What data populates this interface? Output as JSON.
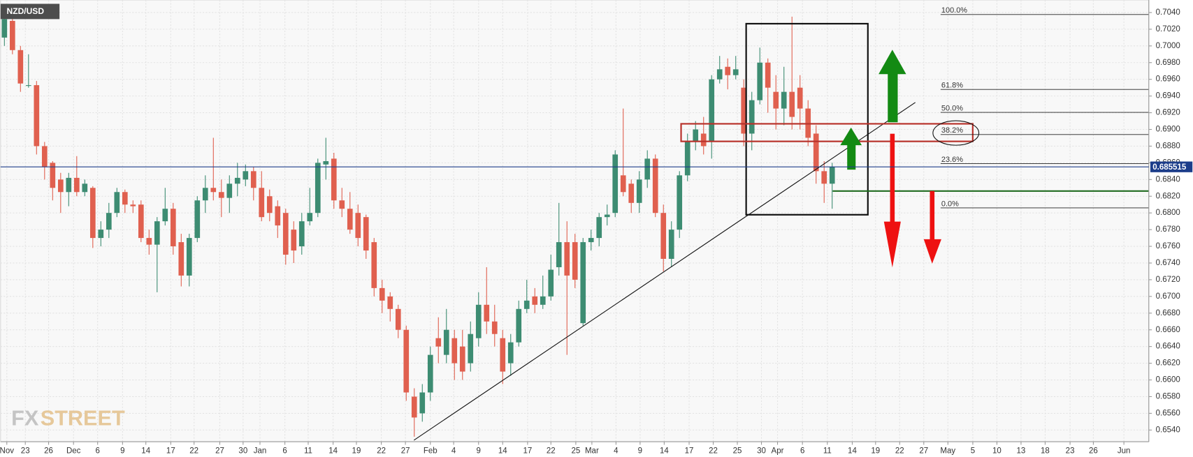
{
  "chart_data": {
    "type": "candlestick",
    "title": "NZD/USD",
    "watermark": [
      "FX",
      "STREET"
    ],
    "up_color": "#3d8c72",
    "down_color": "#e0604f",
    "current_price": 0.685515,
    "current_price_color": "#1c3d8a",
    "fibonacci": [
      "100.0%",
      "61.8%",
      "50.0%",
      "38.2%",
      "23.6%",
      "0.0%"
    ],
    "grid": true,
    "xlim": [
      -0.48,
      142.4
    ],
    "ylim": [
      0.6526,
      0.7055
    ],
    "yticks": [
      {
        "value": 0.654,
        "label": "0.6540"
      },
      {
        "value": 0.656,
        "label": "0.6560"
      },
      {
        "value": 0.658,
        "label": "0.6580"
      },
      {
        "value": 0.66,
        "label": "0.6600"
      },
      {
        "value": 0.662,
        "label": "0.6620"
      },
      {
        "value": 0.664,
        "label": "0.6640"
      },
      {
        "value": 0.666,
        "label": "0.6660"
      },
      {
        "value": 0.668,
        "label": "0.6680"
      },
      {
        "value": 0.67,
        "label": "0.6700"
      },
      {
        "value": 0.672,
        "label": "0.6720"
      },
      {
        "value": 0.674,
        "label": "0.6740"
      },
      {
        "value": 0.676,
        "label": "0.6760"
      },
      {
        "value": 0.678,
        "label": "0.6780"
      },
      {
        "value": 0.68,
        "label": "0.6800"
      },
      {
        "value": 0.682,
        "label": "0.6820"
      },
      {
        "value": 0.684,
        "label": "0.6840"
      },
      {
        "value": 0.686,
        "label": "0.6860"
      },
      {
        "value": 0.688,
        "label": "0.6880"
      },
      {
        "value": 0.69,
        "label": "0.6900"
      },
      {
        "value": 0.692,
        "label": "0.6920"
      },
      {
        "value": 0.694,
        "label": "0.6940"
      },
      {
        "value": 0.696,
        "label": "0.6960"
      },
      {
        "value": 0.698,
        "label": "0.6980"
      },
      {
        "value": 0.7,
        "label": "0.7000"
      },
      {
        "value": 0.702,
        "label": "0.7020"
      },
      {
        "value": 0.704,
        "label": "0.7040"
      }
    ],
    "xticks": [
      {
        "value": 0.3,
        "label": "Nov"
      },
      {
        "value": 2.6,
        "label": "23"
      },
      {
        "value": 5.5,
        "label": "26"
      },
      {
        "value": 8.6,
        "label": "Dec"
      },
      {
        "value": 11.6,
        "label": "6"
      },
      {
        "value": 14.7,
        "label": "9"
      },
      {
        "value": 17.6,
        "label": "14"
      },
      {
        "value": 20.7,
        "label": "17"
      },
      {
        "value": 23.6,
        "label": "22"
      },
      {
        "value": 26.8,
        "label": "27"
      },
      {
        "value": 29.7,
        "label": "30"
      },
      {
        "value": 31.8,
        "label": "Jan"
      },
      {
        "value": 34.9,
        "label": "6"
      },
      {
        "value": 37.8,
        "label": "11"
      },
      {
        "value": 40.9,
        "label": "14"
      },
      {
        "value": 43.8,
        "label": "19"
      },
      {
        "value": 46.9,
        "label": "22"
      },
      {
        "value": 49.9,
        "label": "27"
      },
      {
        "value": 53,
        "label": "Feb"
      },
      {
        "value": 55.9,
        "label": "4"
      },
      {
        "value": 59,
        "label": "9"
      },
      {
        "value": 62,
        "label": "14"
      },
      {
        "value": 65.1,
        "label": "17"
      },
      {
        "value": 68,
        "label": "22"
      },
      {
        "value": 71.1,
        "label": "25"
      },
      {
        "value": 73.1,
        "label": "Mar"
      },
      {
        "value": 76.1,
        "label": "4"
      },
      {
        "value": 79.1,
        "label": "9"
      },
      {
        "value": 82.1,
        "label": "14"
      },
      {
        "value": 85.2,
        "label": "17"
      },
      {
        "value": 88.2,
        "label": "22"
      },
      {
        "value": 91.2,
        "label": "25"
      },
      {
        "value": 94.2,
        "label": "30"
      },
      {
        "value": 96.2,
        "label": "Apr"
      },
      {
        "value": 99.3,
        "label": "6"
      },
      {
        "value": 102.4,
        "label": "11"
      },
      {
        "value": 105.5,
        "label": "14"
      },
      {
        "value": 108.4,
        "label": "19"
      },
      {
        "value": 111.4,
        "label": "22"
      },
      {
        "value": 114.4,
        "label": "27"
      },
      {
        "value": 117.4,
        "label": "May"
      },
      {
        "value": 120.5,
        "label": "5"
      },
      {
        "value": 123.5,
        "label": "10"
      },
      {
        "value": 126.5,
        "label": "13"
      },
      {
        "value": 129.5,
        "label": "18"
      },
      {
        "value": 132.6,
        "label": "23"
      },
      {
        "value": 135.5,
        "label": "26"
      },
      {
        "value": 139.3,
        "label": "Jun"
      }
    ],
    "open": [
      0.701,
      0.703,
      0.6995,
      0.6953,
      0.6953,
      0.688,
      0.686,
      0.684,
      0.6825,
      0.6842,
      0.6825,
      0.683,
      0.677,
      0.678,
      0.68,
      0.6825,
      0.681,
      0.681,
      0.677,
      0.6762,
      0.679,
      0.6805,
      0.6765,
      0.6725,
      0.677,
      0.6815,
      0.683,
      0.6825,
      0.6818,
      0.6835,
      0.684,
      0.685,
      0.683,
      0.682,
      0.6808,
      0.68,
      0.678,
      0.676,
      0.679,
      0.68,
      0.6858,
      0.6865,
      0.6815,
      0.6805,
      0.68,
      0.6795,
      0.6765,
      0.671,
      0.67,
      0.6685,
      0.666,
      0.658,
      0.656,
      0.6585,
      0.665,
      0.663,
      0.665,
      0.664,
      0.662,
      0.665,
      0.669,
      0.667,
      0.665,
      0.662,
      0.6645,
      0.6685,
      0.67,
      0.669,
      0.67,
      0.6735,
      0.6765,
      0.6765,
      0.6668,
      0.6765,
      0.677,
      0.6795,
      0.68,
      0.6845,
      0.6835,
      0.6812,
      0.684,
      0.6865,
      0.68,
      0.6745,
      0.678,
      0.6845,
      0.6885,
      0.6895,
      0.6885,
      0.696,
      0.6975,
      0.6965,
      0.695,
      0.6895,
      0.6935,
      0.698,
      0.6945,
      0.6925,
      0.6945,
      0.695,
      0.6925,
      0.6895,
      0.685,
      0.6835
    ],
    "high": [
      0.7046,
      0.7035,
      0.7,
      0.699,
      0.6958,
      0.6885,
      0.6862,
      0.6848,
      0.6848,
      0.6868,
      0.684,
      0.6832,
      0.679,
      0.6812,
      0.683,
      0.6828,
      0.6815,
      0.6815,
      0.678,
      0.6795,
      0.683,
      0.6812,
      0.6775,
      0.6775,
      0.682,
      0.6845,
      0.689,
      0.684,
      0.6845,
      0.686,
      0.6858,
      0.6855,
      0.685,
      0.6828,
      0.6815,
      0.6805,
      0.679,
      0.68,
      0.683,
      0.6865,
      0.689,
      0.6872,
      0.683,
      0.6825,
      0.681,
      0.6798,
      0.677,
      0.672,
      0.6705,
      0.669,
      0.6665,
      0.659,
      0.6595,
      0.664,
      0.6675,
      0.6685,
      0.666,
      0.666,
      0.667,
      0.6705,
      0.6735,
      0.669,
      0.666,
      0.6655,
      0.6695,
      0.672,
      0.671,
      0.6725,
      0.675,
      0.6812,
      0.679,
      0.6775,
      0.677,
      0.678,
      0.68,
      0.681,
      0.6875,
      0.6925,
      0.684,
      0.685,
      0.6875,
      0.687,
      0.681,
      0.679,
      0.685,
      0.6895,
      0.691,
      0.6915,
      0.6965,
      0.6988,
      0.6985,
      0.6988,
      0.696,
      0.6945,
      0.6998,
      0.6985,
      0.6965,
      0.6975,
      0.7035,
      0.6965,
      0.6935,
      0.6905,
      0.6862,
      0.686
    ],
    "low": [
      0.7,
      0.699,
      0.6945,
      0.695,
      0.687,
      0.684,
      0.6815,
      0.68,
      0.6808,
      0.682,
      0.682,
      0.6758,
      0.676,
      0.677,
      0.6795,
      0.68,
      0.68,
      0.6765,
      0.675,
      0.6705,
      0.6785,
      0.675,
      0.6712,
      0.6712,
      0.6765,
      0.68,
      0.6815,
      0.6795,
      0.68,
      0.682,
      0.6832,
      0.6815,
      0.679,
      0.679,
      0.677,
      0.6738,
      0.674,
      0.675,
      0.6785,
      0.6795,
      0.684,
      0.6805,
      0.6795,
      0.6775,
      0.676,
      0.6745,
      0.67,
      0.668,
      0.667,
      0.665,
      0.6575,
      0.6532,
      0.655,
      0.6575,
      0.662,
      0.662,
      0.66,
      0.66,
      0.661,
      0.664,
      0.6655,
      0.664,
      0.6595,
      0.6605,
      0.664,
      0.668,
      0.668,
      0.6685,
      0.6695,
      0.6725,
      0.663,
      0.671,
      0.6665,
      0.6755,
      0.676,
      0.6785,
      0.6795,
      0.682,
      0.68,
      0.68,
      0.683,
      0.6795,
      0.673,
      0.6735,
      0.677,
      0.6838,
      0.6875,
      0.687,
      0.6865,
      0.6955,
      0.6948,
      0.696,
      0.688,
      0.6875,
      0.693,
      0.692,
      0.69,
      0.6905,
      0.69,
      0.69,
      0.688,
      0.6835,
      0.6812,
      0.6805
    ],
    "close": [
      0.7032,
      0.6995,
      0.6955,
      0.6953,
      0.688,
      0.6855,
      0.683,
      0.6825,
      0.6842,
      0.6825,
      0.6835,
      0.677,
      0.678,
      0.68,
      0.6825,
      0.681,
      0.6808,
      0.677,
      0.6762,
      0.679,
      0.6805,
      0.676,
      0.6725,
      0.677,
      0.6815,
      0.683,
      0.6825,
      0.6818,
      0.6835,
      0.6842,
      0.685,
      0.683,
      0.6795,
      0.68,
      0.6785,
      0.675,
      0.6755,
      0.679,
      0.68,
      0.686,
      0.6862,
      0.6815,
      0.6805,
      0.678,
      0.677,
      0.6755,
      0.671,
      0.6695,
      0.6685,
      0.666,
      0.6585,
      0.6555,
      0.6585,
      0.663,
      0.664,
      0.666,
      0.662,
      0.661,
      0.6655,
      0.669,
      0.667,
      0.6655,
      0.661,
      0.6645,
      0.6685,
      0.6695,
      0.669,
      0.67,
      0.6732,
      0.6765,
      0.6725,
      0.672,
      0.6765,
      0.677,
      0.6795,
      0.6798,
      0.687,
      0.6825,
      0.6812,
      0.684,
      0.6865,
      0.68,
      0.6745,
      0.678,
      0.6845,
      0.6885,
      0.69,
      0.688,
      0.696,
      0.6972,
      0.6965,
      0.6972,
      0.6895,
      0.6935,
      0.698,
      0.695,
      0.6925,
      0.6945,
      0.6915,
      0.6925,
      0.689,
      0.685,
      0.6835,
      0.6855
    ]
  }
}
